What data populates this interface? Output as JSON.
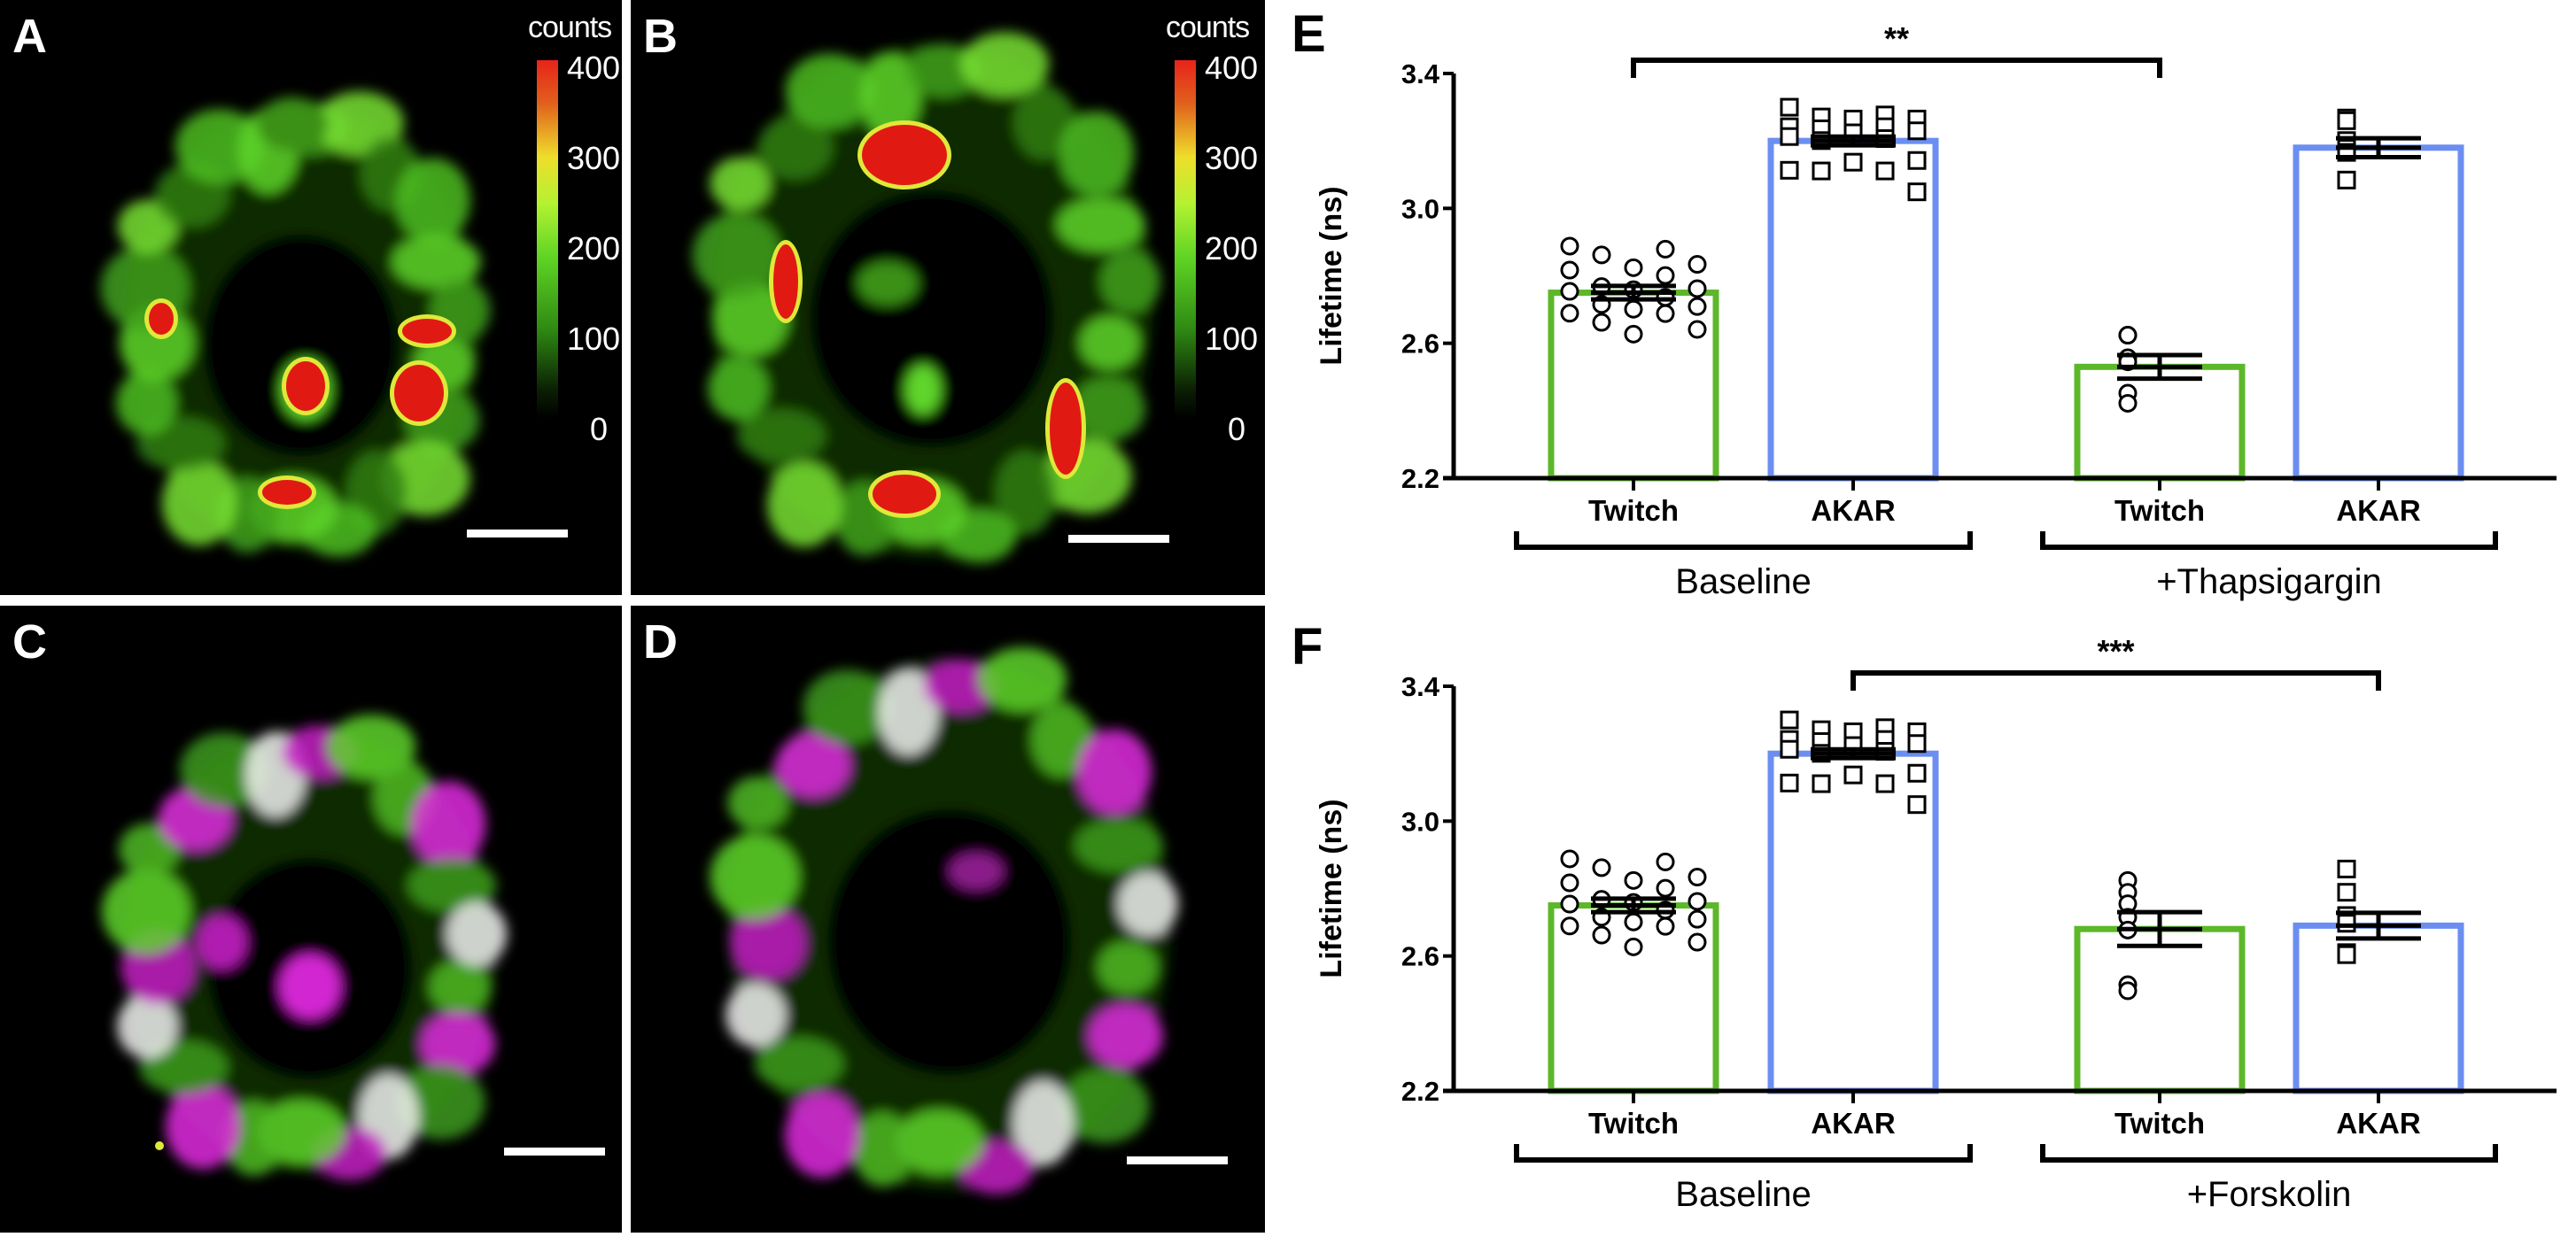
{
  "panels": {
    "A": {
      "label": "A",
      "colorbar": {
        "title": "counts",
        "ticks": [
          "400",
          "300",
          "200",
          "100",
          "0"
        ]
      }
    },
    "B": {
      "label": "B",
      "colorbar": {
        "title": "counts",
        "ticks": [
          "400",
          "300",
          "200",
          "100",
          "0"
        ]
      }
    },
    "C": {
      "label": "C"
    },
    "D": {
      "label": "D"
    }
  },
  "colors": {
    "twitch": "#5cb82a",
    "akar": "#6b8ef0",
    "axis": "#000000"
  },
  "chart_data": [
    {
      "type": "bar",
      "panel_label": "E",
      "ylabel": "Lifetime (ns)",
      "ylim": [
        2.2,
        3.4
      ],
      "yticks": [
        "2.2",
        "2.6",
        "3.0",
        "3.4"
      ],
      "ytick_values": [
        2.2,
        2.6,
        3.0,
        3.4
      ],
      "groups": [
        "Baseline",
        "+Thapsigargin"
      ],
      "bars": [
        {
          "category": "Twitch",
          "group": 0,
          "series": "twitch",
          "mean": 2.75,
          "sem": 0.02,
          "marker": "circle",
          "points": [
            2.888,
            2.879,
            2.862,
            2.834,
            2.824,
            2.817,
            2.801,
            2.768,
            2.762,
            2.759,
            2.754,
            2.736,
            2.715,
            2.709,
            2.701,
            2.689,
            2.688,
            2.662,
            2.641,
            2.627
          ]
        },
        {
          "category": "AKAR",
          "group": 0,
          "series": "akar",
          "mean": 3.2,
          "sem": 0.013,
          "marker": "square",
          "points": [
            3.3,
            3.277,
            3.271,
            3.265,
            3.265,
            3.242,
            3.242,
            3.236,
            3.23,
            3.224,
            3.213,
            3.207,
            3.201,
            3.142,
            3.137,
            3.113,
            3.111,
            3.111,
            3.049
          ]
        },
        {
          "category": "Twitch",
          "group": 1,
          "series": "twitch",
          "mean": 2.53,
          "sem": 0.035,
          "marker": "circle",
          "points": [
            2.624,
            2.624,
            2.557,
            2.545,
            2.452,
            2.422
          ]
        },
        {
          "category": "AKAR",
          "group": 1,
          "series": "akar",
          "mean": 3.18,
          "sem": 0.028,
          "marker": "square",
          "points": [
            3.268,
            3.26,
            3.201,
            3.178,
            3.166,
            3.084
          ]
        }
      ],
      "significance": {
        "from_bar": 0,
        "to_bar": 2,
        "label": "**"
      }
    },
    {
      "type": "bar",
      "panel_label": "F",
      "ylabel": "Lifetime (ns)",
      "ylim": [
        2.2,
        3.4
      ],
      "yticks": [
        "2.2",
        "2.6",
        "3.0",
        "3.4"
      ],
      "ytick_values": [
        2.2,
        2.6,
        3.0,
        3.4
      ],
      "groups": [
        "Baseline",
        "+Forskolin"
      ],
      "bars": [
        {
          "category": "Twitch",
          "group": 0,
          "series": "twitch",
          "mean": 2.75,
          "sem": 0.02,
          "marker": "circle",
          "points": [
            2.888,
            2.879,
            2.862,
            2.834,
            2.824,
            2.817,
            2.801,
            2.768,
            2.762,
            2.759,
            2.754,
            2.736,
            2.715,
            2.709,
            2.701,
            2.689,
            2.688,
            2.662,
            2.641,
            2.627
          ]
        },
        {
          "category": "AKAR",
          "group": 0,
          "series": "akar",
          "mean": 3.2,
          "sem": 0.013,
          "marker": "square",
          "points": [
            3.3,
            3.277,
            3.271,
            3.265,
            3.265,
            3.242,
            3.242,
            3.236,
            3.23,
            3.224,
            3.213,
            3.207,
            3.201,
            3.142,
            3.137,
            3.113,
            3.111,
            3.111,
            3.049
          ]
        },
        {
          "category": "Twitch",
          "group": 1,
          "series": "twitch",
          "mean": 2.68,
          "sem": 0.05,
          "marker": "circle",
          "points": [
            2.824,
            2.789,
            2.755,
            2.715,
            2.677,
            2.515,
            2.497
          ]
        },
        {
          "category": "AKAR",
          "group": 1,
          "series": "akar",
          "mean": 2.69,
          "sem": 0.038,
          "marker": "square",
          "points": [
            2.858,
            2.789,
            2.72,
            2.697,
            2.61,
            2.608,
            2.604
          ]
        }
      ],
      "significance": {
        "from_bar": 1,
        "to_bar": 3,
        "label": "***"
      }
    }
  ]
}
